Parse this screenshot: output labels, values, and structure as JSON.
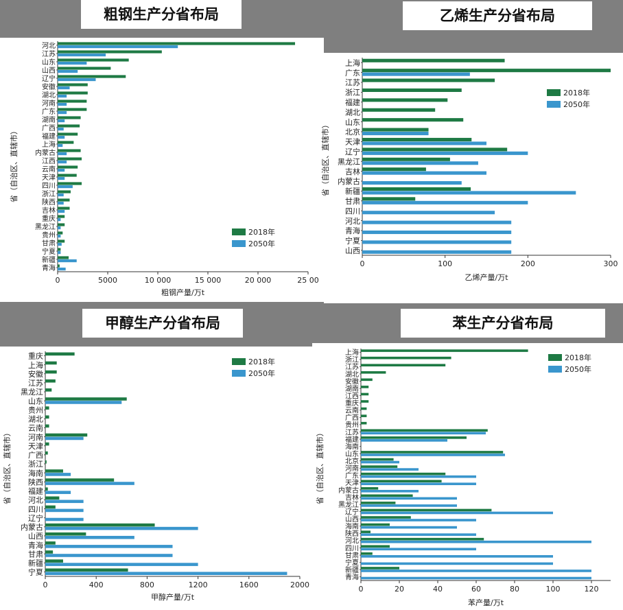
{
  "chart_data": [
    {
      "type": "bar",
      "title": "粗钢生产分省布局",
      "xlabel": "粗钢产量/万t",
      "ylabel": "省（自治区、直辖市）",
      "xlim": [
        0,
        25000
      ],
      "xticks": [
        "0",
        "5000",
        "10 000",
        "15 000",
        "20 000",
        "25 00"
      ],
      "xtick_values": [
        0,
        5000,
        10000,
        15000,
        20000,
        25000
      ],
      "categories": [
        "河北",
        "江苏",
        "山东",
        "山西",
        "辽宁",
        "安徽",
        "湖北",
        "河南",
        "广东",
        "湖南",
        "广西",
        "福建",
        "上海",
        "内蒙古",
        "江西",
        "云南",
        "天津",
        "四川",
        "浙江",
        "陕西",
        "吉林",
        "重庆",
        "黑龙江",
        "贵州",
        "甘肃",
        "宁夏",
        "新疆",
        "青海"
      ],
      "series": [
        {
          "name": "2018年",
          "color": "#1e7a44",
          "values": [
            23700,
            10400,
            7100,
            5300,
            6800,
            3000,
            3000,
            2900,
            2900,
            2300,
            2200,
            2000,
            1600,
            2300,
            2400,
            2000,
            1900,
            2400,
            1300,
            1200,
            1200,
            700,
            700,
            500,
            700,
            300,
            1100,
            200
          ]
        },
        {
          "name": "2050年",
          "color": "#3a96cd",
          "values": [
            12000,
            4800,
            2900,
            2000,
            3800,
            1200,
            900,
            900,
            900,
            700,
            600,
            700,
            500,
            900,
            900,
            700,
            700,
            1500,
            600,
            600,
            700,
            300,
            300,
            300,
            400,
            300,
            1900,
            800
          ]
        }
      ],
      "legend": "bottom-right"
    },
    {
      "type": "bar",
      "title": "乙烯生产分省布局",
      "xlabel": "乙烯产量/万t",
      "ylabel": "省（自治区、直辖市）",
      "xlim": [
        0,
        300
      ],
      "xticks": [
        "0",
        "100",
        "200",
        "300"
      ],
      "xtick_values": [
        0,
        100,
        200,
        300
      ],
      "categories": [
        "上海",
        "广东",
        "江苏",
        "浙江",
        "福建",
        "湖北",
        "山东",
        "北京",
        "天津",
        "辽宁",
        "黑龙江",
        "吉林",
        "内蒙古",
        "新疆",
        "甘肃",
        "四川",
        "河北",
        "青海",
        "宁夏",
        "山西"
      ],
      "series": [
        {
          "name": "2018年",
          "color": "#1e7a44",
          "values": [
            172,
            300,
            160,
            120,
            103,
            88,
            122,
            80,
            132,
            175,
            106,
            77,
            0,
            131,
            64,
            0,
            0,
            0,
            0,
            0
          ]
        },
        {
          "name": "2050年",
          "color": "#3a96cd",
          "values": [
            0,
            130,
            0,
            0,
            0,
            0,
            0,
            80,
            150,
            200,
            140,
            150,
            120,
            258,
            200,
            160,
            180,
            180,
            180,
            180
          ]
        }
      ],
      "legend": "top-right"
    },
    {
      "type": "bar",
      "title": "甲醇生产分省布局",
      "xlabel": "甲醇产量/万t",
      "ylabel": "省（自治区、直辖市）",
      "xlim": [
        0,
        2000
      ],
      "xticks": [
        "0",
        "400",
        "800",
        "1200",
        "1600",
        "2000"
      ],
      "xtick_values": [
        0,
        400,
        800,
        1200,
        1600,
        2000
      ],
      "categories": [
        "重庆",
        "上海",
        "安徽",
        "江苏",
        "黑龙江",
        "山东",
        "贵州",
        "湖北",
        "云南",
        "河南",
        "天津",
        "广西",
        "浙江",
        "海南",
        "陕西",
        "福建",
        "河北",
        "四川",
        "辽宁",
        "内蒙古",
        "山西",
        "青海",
        "甘肃",
        "新疆",
        "宁夏"
      ],
      "series": [
        {
          "name": "2018年",
          "color": "#1e7a44",
          "values": [
            230,
            90,
            90,
            80,
            50,
            640,
            30,
            30,
            30,
            330,
            30,
            20,
            10,
            140,
            540,
            20,
            110,
            80,
            0,
            860,
            320,
            80,
            60,
            140,
            650
          ]
        },
        {
          "name": "2050年",
          "color": "#3a96cd",
          "values": [
            0,
            0,
            0,
            0,
            0,
            600,
            0,
            0,
            0,
            300,
            0,
            0,
            0,
            200,
            700,
            200,
            300,
            300,
            300,
            1200,
            700,
            1000,
            1000,
            1200,
            1900
          ]
        }
      ],
      "legend": "top-right"
    },
    {
      "type": "bar",
      "title": "苯生产分省布局",
      "xlabel": "苯产量/万t",
      "ylabel": "省（自治区、直辖市）",
      "xlim": [
        0,
        130
      ],
      "xticks": [
        "0",
        "20",
        "40",
        "60",
        "80",
        "100",
        "120"
      ],
      "xtick_values": [
        0,
        20,
        40,
        60,
        80,
        100,
        120
      ],
      "categories": [
        "上海",
        "浙江",
        "江苏",
        "湖北",
        "安徽",
        "湖南",
        "江西",
        "重庆",
        "云南",
        "广西",
        "贵州",
        "江苏",
        "福建",
        "海南",
        "山东",
        "北京",
        "河南",
        "广东",
        "天津",
        "内蒙古",
        "吉林",
        "黑龙江",
        "辽宁",
        "山西",
        "海南",
        "陕西",
        "河北",
        "四川",
        "甘肃",
        "宁夏",
        "新疆",
        "青海"
      ],
      "series": [
        {
          "name": "2018年",
          "color": "#1e7a44",
          "values": [
            87,
            47,
            44,
            13,
            6,
            4,
            4,
            4,
            3,
            3,
            3,
            66,
            55,
            0,
            74,
            17,
            19,
            44,
            42,
            9,
            27,
            18,
            68,
            26,
            15,
            5,
            64,
            15,
            6,
            0,
            20,
            0
          ]
        },
        {
          "name": "2050年",
          "color": "#3a96cd",
          "values": [
            0,
            0,
            0,
            0,
            0,
            0,
            0,
            0,
            0,
            0,
            0,
            65,
            45,
            0,
            75,
            20,
            30,
            60,
            60,
            30,
            50,
            50,
            100,
            60,
            50,
            60,
            120,
            60,
            100,
            100,
            120,
            120
          ]
        }
      ],
      "legend": "top-right"
    }
  ]
}
